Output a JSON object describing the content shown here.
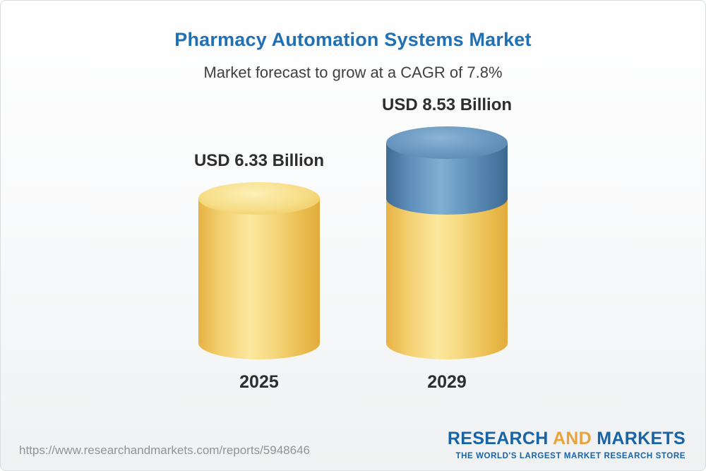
{
  "header": {
    "title": "Pharmacy Automation Systems Market",
    "subtitle": "Market forecast to grow at a CAGR of 7.8%"
  },
  "chart_data": {
    "type": "bar",
    "title": "Pharmacy Automation Systems Market",
    "subtitle": "Market forecast to grow at a CAGR of 7.8%",
    "cagr_percent": 7.8,
    "unit": "USD Billion",
    "categories": [
      "2025",
      "2029"
    ],
    "values": [
      6.33,
      8.53
    ],
    "value_labels": [
      "USD 6.33 Billion",
      "USD 8.53 Billion"
    ],
    "legend_position": "none",
    "grid": false,
    "colors": {
      "base_segment": "#f2c651",
      "growth_segment": "#6697bf",
      "title": "#2170b4",
      "labels": "#2e2e2e"
    }
  },
  "footer": {
    "url": "https://www.researchandmarkets.com/reports/5948646",
    "logo": {
      "research": "RESEARCH",
      "and": "AND",
      "markets": "MARKETS",
      "tagline": "THE WORLD'S LARGEST MARKET RESEARCH STORE"
    }
  }
}
